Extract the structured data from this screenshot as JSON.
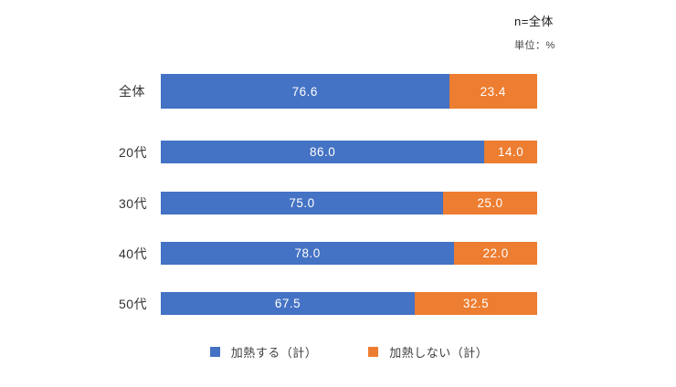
{
  "meta": {
    "n_label": "n=全体",
    "unit_label": "単位：%"
  },
  "colors": {
    "series1": "#4472c4",
    "series2": "#ed7d31",
    "value_text": "#ffffff",
    "label_text": "#333333"
  },
  "chart_data": {
    "type": "bar",
    "orientation": "horizontal",
    "stacked": true,
    "grid": false,
    "legend_position": "bottom",
    "xlim": [
      0,
      100
    ],
    "value_labels": "one-decimal, centered in segment",
    "categories": [
      "全体",
      "20代",
      "30代",
      "40代",
      "50代"
    ],
    "series": [
      {
        "name": "加熱する（計）",
        "color": "#4472c4",
        "values": [
          76.6,
          86.0,
          75.0,
          78.0,
          67.5
        ]
      },
      {
        "name": "加熱しない（計）",
        "color": "#ed7d31",
        "values": [
          23.4,
          14.0,
          25.0,
          22.0,
          32.5
        ]
      }
    ]
  },
  "legend": {
    "items": [
      {
        "label": "加熱する（計）",
        "color": "#4472c4"
      },
      {
        "label": "加熱しない（計）",
        "color": "#ed7d31"
      }
    ]
  }
}
